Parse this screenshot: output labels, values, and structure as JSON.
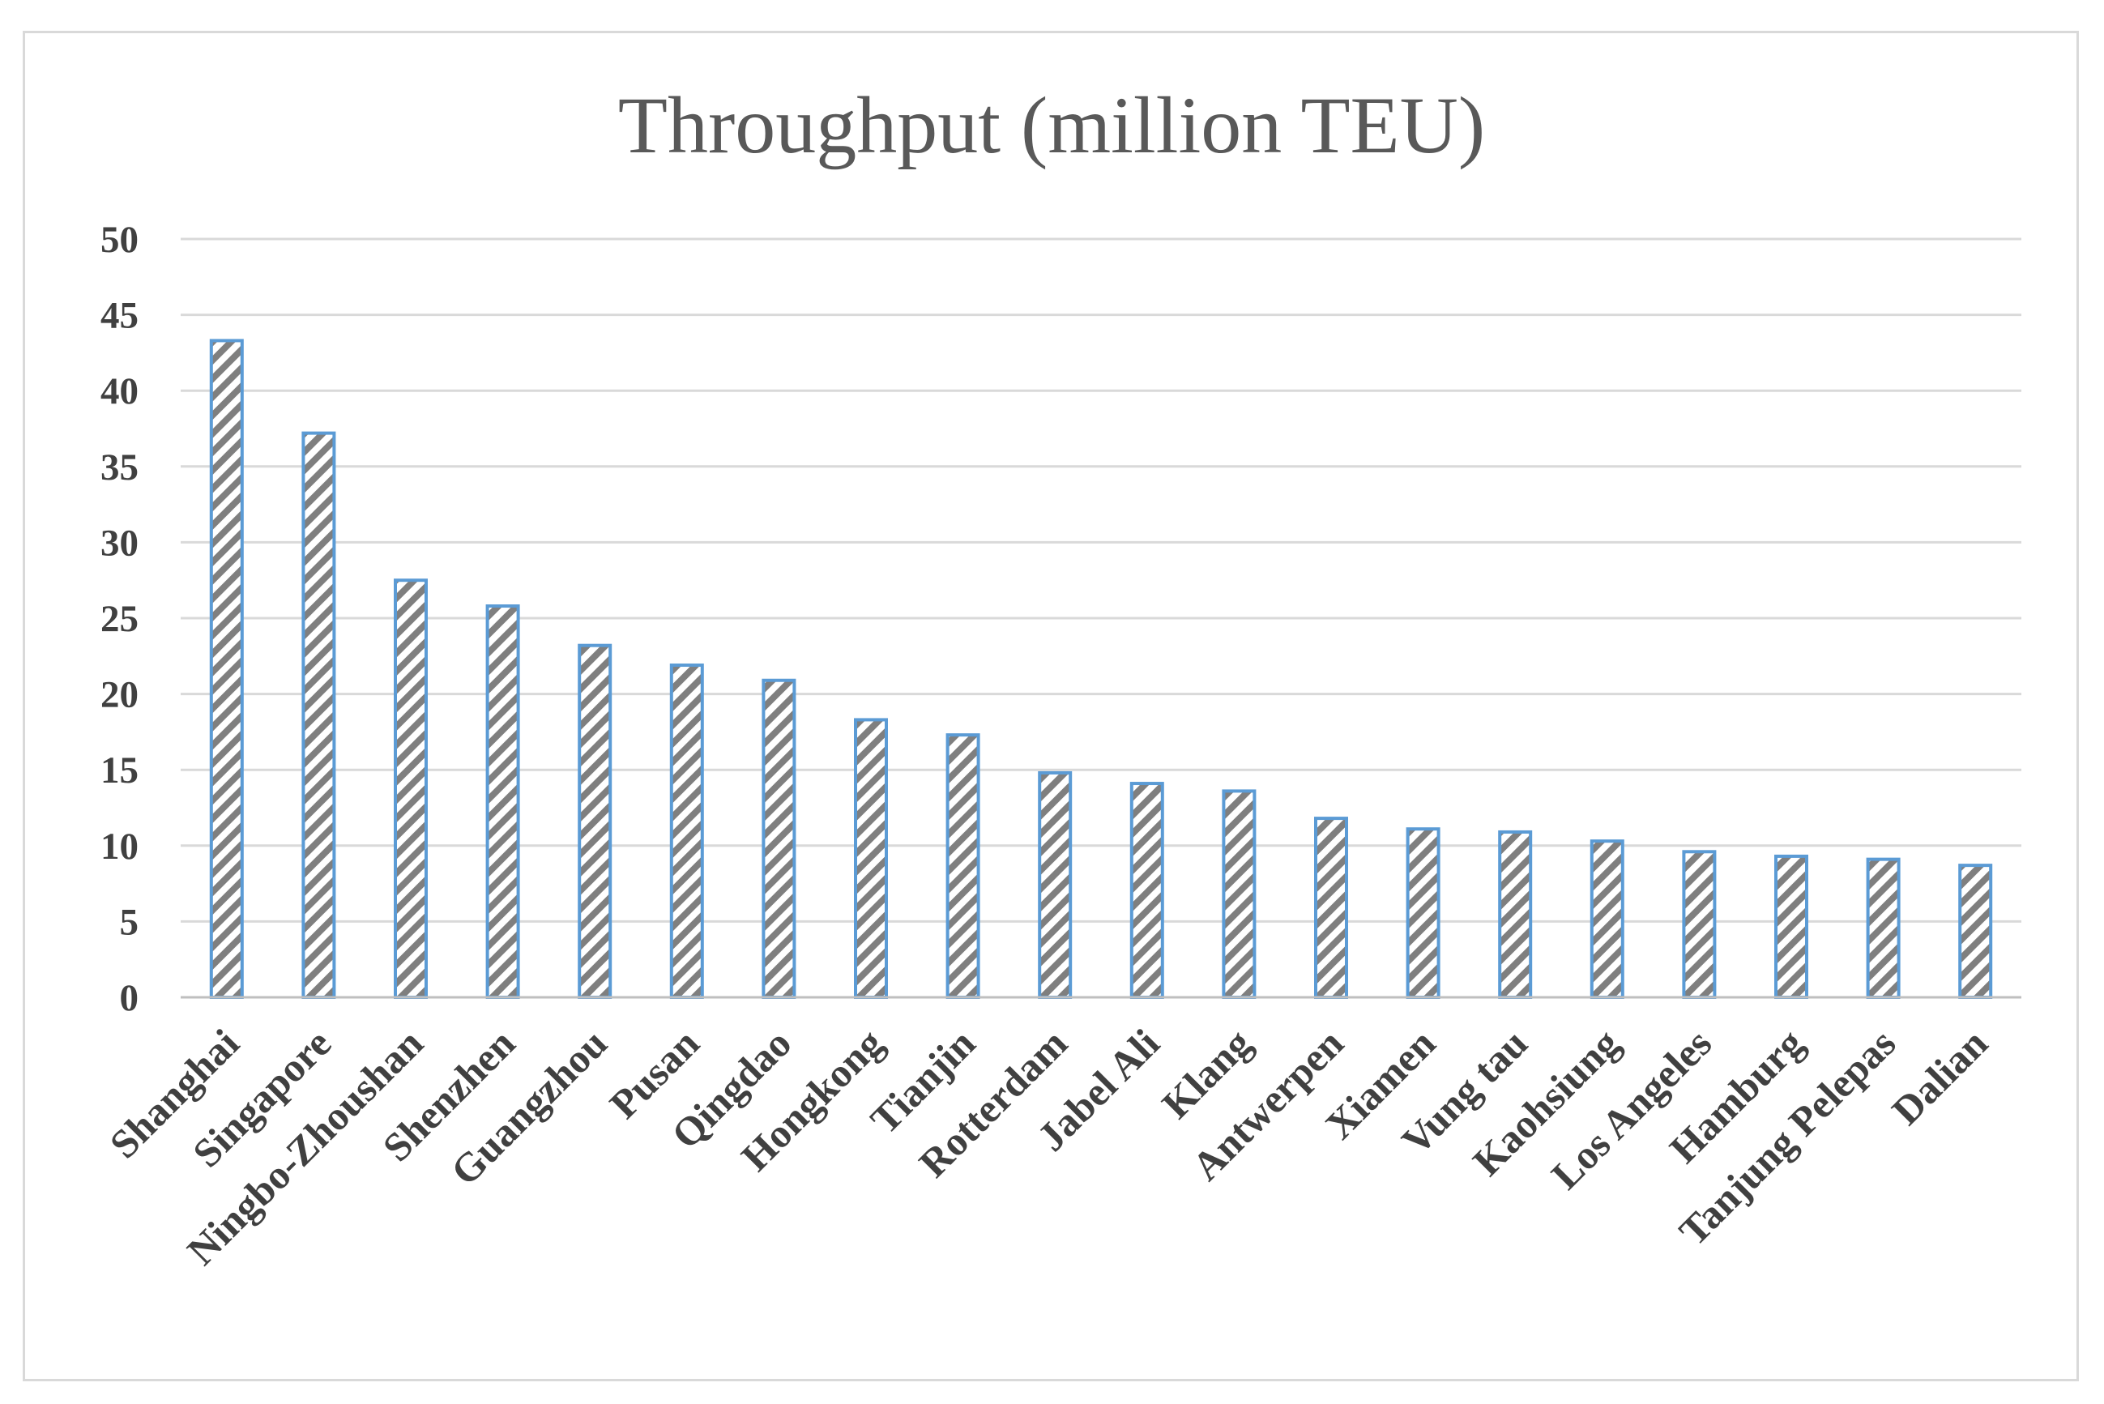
{
  "chart_data": {
    "type": "bar",
    "title": "Throughput (million TEU)",
    "xlabel": "",
    "ylabel": "",
    "ylim": [
      0,
      50
    ],
    "yticks": [
      0,
      5,
      10,
      15,
      20,
      25,
      30,
      35,
      40,
      45,
      50
    ],
    "grid": true,
    "legend": "none",
    "categories": [
      "Shanghai",
      "Singapore",
      "Ningbo-Zhoushan",
      "Shenzhen",
      "Guangzhou",
      "Pusan",
      "Qingdao",
      "Hongkong",
      "Tianjin",
      "Rotterdam",
      "Jabel Ali",
      "Klang",
      "Antwerpen",
      "Xiamen",
      "Vung tau",
      "Kaohsiung",
      "Los Angeles",
      "Hamburg",
      "Tanjung Pelepas",
      "Dalian"
    ],
    "values": [
      43.3,
      37.2,
      27.5,
      25.8,
      23.2,
      21.9,
      20.9,
      18.3,
      17.3,
      14.8,
      14.1,
      13.6,
      11.8,
      11.1,
      10.9,
      10.3,
      9.6,
      9.3,
      9.1,
      8.7
    ],
    "colors": {
      "bar_border": "#5b9bd5",
      "hatch": "#7f7f7f",
      "bar_fill": "#ffffff"
    }
  }
}
